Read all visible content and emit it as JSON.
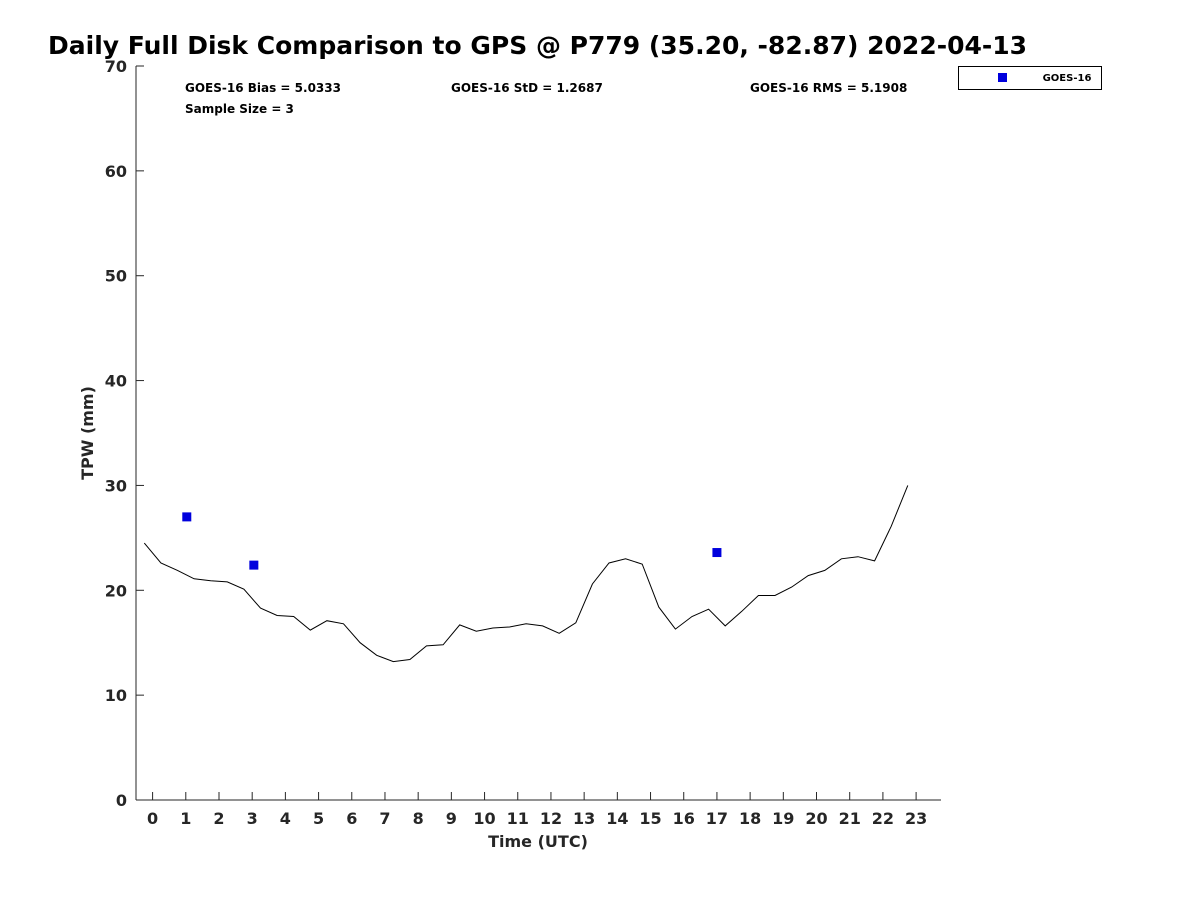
{
  "chart_data": {
    "type": "scatter",
    "title": "Daily Full Disk Comparison to GPS @ P779 (35.20, -82.87) 2022-04-13",
    "xlabel": "Time (UTC)",
    "ylabel": "TPW (mm)",
    "xlim": [
      -0.5,
      23.75
    ],
    "ylim": [
      0,
      70
    ],
    "xticks": [
      0,
      1,
      2,
      3,
      4,
      5,
      6,
      7,
      8,
      9,
      10,
      11,
      12,
      13,
      14,
      15,
      16,
      17,
      18,
      19,
      20,
      21,
      22,
      23
    ],
    "yticks": [
      0,
      10,
      20,
      30,
      40,
      50,
      60,
      70
    ],
    "grid": false,
    "legend_position": "top-right",
    "stats": {
      "bias": "GOES-16 Bias = 5.0333",
      "std": "GOES-16 StD = 1.2687",
      "rms": "GOES-16 RMS = 5.1908",
      "sample": "Sample Size = 3"
    },
    "series": [
      {
        "kind": "line",
        "color": "#000000",
        "x": [
          -0.25,
          0.25,
          0.75,
          1.25,
          1.75,
          2.25,
          2.75,
          3.25,
          3.75,
          4.25,
          4.75,
          5.25,
          5.75,
          6.25,
          6.75,
          7.25,
          7.75,
          8.25,
          8.75,
          9.25,
          9.75,
          10.25,
          10.75,
          11.25,
          11.75,
          12.25,
          12.75,
          13.25,
          13.75,
          14.25,
          14.75,
          15.25,
          15.75,
          16.25,
          16.75,
          17.25,
          17.75,
          18.25,
          18.75,
          19.25,
          19.75,
          20.25,
          20.75,
          21.25,
          21.75,
          22.25,
          22.75
        ],
        "y": [
          24.5,
          22.6,
          21.9,
          21.1,
          20.9,
          20.8,
          20.1,
          18.3,
          17.6,
          17.5,
          16.2,
          17.1,
          16.8,
          15.0,
          13.8,
          13.2,
          13.4,
          14.7,
          14.8,
          16.7,
          16.1,
          16.4,
          16.5,
          16.8,
          16.6,
          15.9,
          16.9,
          20.6,
          22.6,
          23.0,
          22.5,
          18.4,
          16.3,
          17.5,
          18.2,
          16.6,
          18.0,
          19.5,
          19.5,
          20.3,
          21.4,
          21.9,
          23.0,
          23.2,
          22.8,
          26.1,
          30.0
        ]
      },
      {
        "name": "GOES-16",
        "kind": "scatter",
        "color": "#0000dd",
        "x": [
          1.03,
          3.05,
          17.0
        ],
        "y": [
          27.0,
          22.4,
          23.6
        ]
      }
    ]
  }
}
